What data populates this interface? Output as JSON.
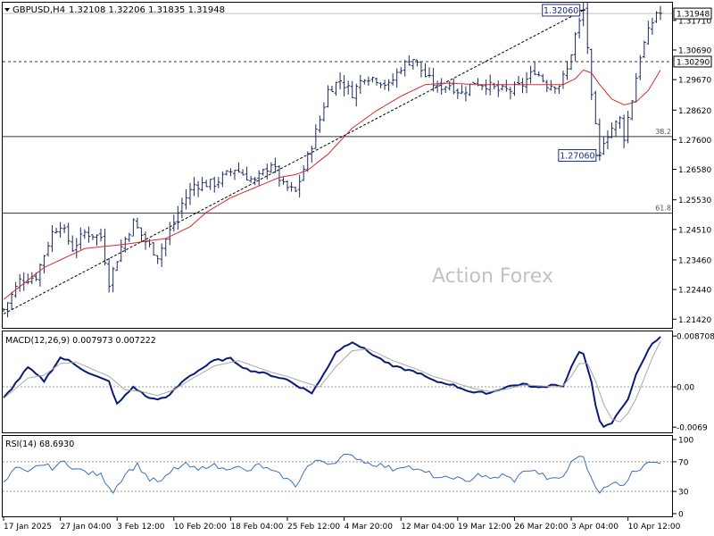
{
  "header": {
    "symbol": "GBPUSD,H4",
    "ohlc": "1.32108 1.32206 1.31835 1.31948"
  },
  "watermark": "Action Forex",
  "colors": {
    "bar": "#1c2a5e",
    "ma": "#d62a2a",
    "macd": "#0b1a78",
    "signal": "#a8a8a8",
    "rsi": "#3b6fc2",
    "grid": "#333333",
    "dotted": "#9a9a9a"
  },
  "chart_data": [
    {
      "type": "ohlc",
      "panel": "price",
      "ylim": [
        1.2112,
        1.3232
      ],
      "ticks": [
        "1.31710",
        "1.30690",
        "1.29670",
        "1.28620",
        "1.27600",
        "1.26580",
        "1.25530",
        "1.24510",
        "1.23460",
        "1.22440",
        "1.21420"
      ],
      "current_price": "1.31948",
      "hline_label": "1.30290",
      "hline_value": 1.3029,
      "fib": [
        {
          "label": "38.2",
          "value": 1.2771
        },
        {
          "label": "61.8",
          "value": 1.2507
        }
      ],
      "annotations": [
        {
          "label": "1.32060",
          "value": 1.3206,
          "bar": 143
        },
        {
          "label": "1.27060",
          "value": 1.2706,
          "bar": 147
        }
      ],
      "trendline": {
        "from_bar": 0,
        "from_value": 1.216,
        "to_bar": 143,
        "to_value": 1.3206
      },
      "anchors": [
        [
          0,
          1.2175
        ],
        [
          4,
          1.2275
        ],
        [
          8,
          1.229
        ],
        [
          12,
          1.244
        ],
        [
          14,
          1.247
        ],
        [
          17,
          1.2385
        ],
        [
          20,
          1.244
        ],
        [
          24,
          1.2425
        ],
        [
          26,
          1.227
        ],
        [
          29,
          1.239
        ],
        [
          32,
          1.2475
        ],
        [
          35,
          1.241
        ],
        [
          38,
          1.236
        ],
        [
          41,
          1.2445
        ],
        [
          44,
          1.254
        ],
        [
          47,
          1.2605
        ],
        [
          52,
          1.261
        ],
        [
          57,
          1.266
        ],
        [
          62,
          1.2615
        ],
        [
          66,
          1.268
        ],
        [
          69,
          1.26
        ],
        [
          72,
          1.258
        ],
        [
          75,
          1.27
        ],
        [
          78,
          1.283
        ],
        [
          80,
          1.293
        ],
        [
          83,
          1.2965
        ],
        [
          86,
          1.292
        ],
        [
          89,
          1.298
        ],
        [
          92,
          1.297
        ],
        [
          95,
          1.2945
        ],
        [
          98,
          1.301
        ],
        [
          101,
          1.304
        ],
        [
          104,
          1.298
        ],
        [
          107,
          1.294
        ],
        [
          110,
          1.295
        ],
        [
          113,
          1.292
        ],
        [
          116,
          1.296
        ],
        [
          119,
          1.295
        ],
        [
          122,
          1.293
        ],
        [
          125,
          1.293
        ],
        [
          128,
          1.295
        ],
        [
          131,
          1.3
        ],
        [
          134,
          1.295
        ],
        [
          137,
          1.295
        ],
        [
          139,
          1.3
        ],
        [
          141,
          1.312
        ],
        [
          143,
          1.3206
        ],
        [
          144,
          1.308
        ],
        [
          145,
          1.29
        ],
        [
          146,
          1.28
        ],
        [
          147,
          1.2706
        ],
        [
          148,
          1.276
        ],
        [
          150,
          1.28
        ],
        [
          152,
          1.283
        ],
        [
          153,
          1.277
        ],
        [
          155,
          1.29
        ],
        [
          157,
          1.305
        ],
        [
          159,
          1.313
        ],
        [
          161,
          1.32
        ],
        [
          162,
          1.3195
        ]
      ],
      "ma_anchors": [
        [
          0,
          1.221
        ],
        [
          10,
          1.232
        ],
        [
          20,
          1.2385
        ],
        [
          30,
          1.24
        ],
        [
          40,
          1.242
        ],
        [
          46,
          1.246
        ],
        [
          50,
          1.251
        ],
        [
          56,
          1.256
        ],
        [
          62,
          1.2595
        ],
        [
          68,
          1.263
        ],
        [
          72,
          1.264
        ],
        [
          75,
          1.2655
        ],
        [
          80,
          1.271
        ],
        [
          86,
          1.28
        ],
        [
          92,
          1.286
        ],
        [
          98,
          1.291
        ],
        [
          104,
          1.295
        ],
        [
          110,
          1.2955
        ],
        [
          116,
          1.295
        ],
        [
          122,
          1.295
        ],
        [
          128,
          1.295
        ],
        [
          134,
          1.295
        ],
        [
          138,
          1.295
        ],
        [
          141,
          1.297
        ],
        [
          143,
          1.3
        ],
        [
          145,
          1.299
        ],
        [
          147,
          1.295
        ],
        [
          150,
          1.29
        ],
        [
          153,
          1.288
        ],
        [
          156,
          1.289
        ],
        [
          159,
          1.293
        ],
        [
          162,
          1.3
        ]
      ]
    },
    {
      "type": "line",
      "panel": "macd",
      "title": "MACD(12,26,9) 0.007973 0.007222",
      "ylim": [
        -0.0078,
        0.0095
      ],
      "ticks": [
        {
          "label": "0.008708",
          "value": 0.008708
        },
        {
          "label": "0.00",
          "value": 0.0
        },
        {
          "label": "-0.0069",
          "value": -0.0069
        }
      ],
      "series": [
        {
          "role": "macd",
          "anchors": [
            [
              0,
              -0.002
            ],
            [
              6,
              0.0033
            ],
            [
              10,
              0.001
            ],
            [
              14,
              0.005
            ],
            [
              16,
              0.0045
            ],
            [
              22,
              0.002
            ],
            [
              26,
              0.0009
            ],
            [
              28,
              -0.003
            ],
            [
              32,
              0.0
            ],
            [
              36,
              -0.002
            ],
            [
              40,
              -0.002
            ],
            [
              45,
              0.0015
            ],
            [
              52,
              0.0045
            ],
            [
              56,
              0.0048
            ],
            [
              60,
              0.003
            ],
            [
              66,
              0.002
            ],
            [
              70,
              0.0012
            ],
            [
              73,
              0.0
            ],
            [
              76,
              -0.001
            ],
            [
              78,
              0.001
            ],
            [
              82,
              0.006
            ],
            [
              86,
              0.0078
            ],
            [
              90,
              0.006
            ],
            [
              96,
              0.0035
            ],
            [
              102,
              0.0025
            ],
            [
              106,
              0.001
            ],
            [
              110,
              0.0005
            ],
            [
              116,
              -0.001
            ],
            [
              120,
              -0.001
            ],
            [
              124,
              0.0
            ],
            [
              128,
              0.0005
            ],
            [
              132,
              -0.0002
            ],
            [
              136,
              0.0005
            ],
            [
              138,
              0.0
            ],
            [
              139,
              0.0018
            ],
            [
              141,
              0.0048
            ],
            [
              142,
              0.0058
            ],
            [
              143,
              0.0055
            ],
            [
              145,
              0.001
            ],
            [
              146,
              -0.003
            ],
            [
              147,
              -0.006
            ],
            [
              148,
              -0.007
            ],
            [
              150,
              -0.0062
            ],
            [
              152,
              -0.004
            ],
            [
              154,
              -0.002
            ],
            [
              156,
              0.002
            ],
            [
              158,
              0.005
            ],
            [
              160,
              0.0075
            ],
            [
              162,
              0.0087
            ]
          ]
        },
        {
          "role": "signal",
          "anchors": [
            [
              0,
              -0.002
            ],
            [
              6,
              0.0015
            ],
            [
              10,
              0.002
            ],
            [
              14,
              0.004
            ],
            [
              18,
              0.0042
            ],
            [
              22,
              0.003
            ],
            [
              26,
              0.0018
            ],
            [
              30,
              -0.0005
            ],
            [
              34,
              -0.0008
            ],
            [
              38,
              -0.0015
            ],
            [
              42,
              -0.0005
            ],
            [
              46,
              0.0012
            ],
            [
              52,
              0.0036
            ],
            [
              58,
              0.0045
            ],
            [
              62,
              0.0035
            ],
            [
              66,
              0.0025
            ],
            [
              70,
              0.0018
            ],
            [
              74,
              0.0008
            ],
            [
              78,
              0.0
            ],
            [
              82,
              0.0035
            ],
            [
              86,
              0.0062
            ],
            [
              90,
              0.0065
            ],
            [
              96,
              0.0045
            ],
            [
              102,
              0.003
            ],
            [
              106,
              0.0018
            ],
            [
              110,
              0.001
            ],
            [
              116,
              -0.0003
            ],
            [
              120,
              -0.0008
            ],
            [
              124,
              -0.0004
            ],
            [
              128,
              0.0003
            ],
            [
              132,
              0.0002
            ],
            [
              136,
              0.0
            ],
            [
              138,
              0.0002
            ],
            [
              140,
              0.0018
            ],
            [
              142,
              0.004
            ],
            [
              144,
              0.004
            ],
            [
              146,
              0.001
            ],
            [
              148,
              -0.003
            ],
            [
              150,
              -0.0055
            ],
            [
              152,
              -0.006
            ],
            [
              154,
              -0.0045
            ],
            [
              156,
              -0.002
            ],
            [
              158,
              0.0015
            ],
            [
              160,
              0.005
            ],
            [
              162,
              0.0078
            ]
          ]
        }
      ]
    },
    {
      "type": "line",
      "panel": "rsi",
      "title": "RSI(14) 68.6930",
      "ylim": [
        0,
        100
      ],
      "ticks": [
        {
          "label": "100",
          "value": 100
        },
        {
          "label": "70",
          "value": 70
        },
        {
          "label": "30",
          "value": 30
        },
        {
          "label": "0",
          "value": 0
        }
      ],
      "levels": [
        70,
        30
      ],
      "series": [
        {
          "role": "rsi",
          "anchors": [
            [
              0,
              40
            ],
            [
              3,
              62
            ],
            [
              6,
              54
            ],
            [
              9,
              67
            ],
            [
              12,
              62
            ],
            [
              15,
              70
            ],
            [
              18,
              60
            ],
            [
              21,
              55
            ],
            [
              24,
              52
            ],
            [
              27,
              30
            ],
            [
              30,
              54
            ],
            [
              33,
              66
            ],
            [
              36,
              46
            ],
            [
              39,
              43
            ],
            [
              42,
              60
            ],
            [
              45,
              66
            ],
            [
              48,
              58
            ],
            [
              51,
              67
            ],
            [
              54,
              60
            ],
            [
              57,
              65
            ],
            [
              60,
              56
            ],
            [
              63,
              66
            ],
            [
              66,
              57
            ],
            [
              69,
              50
            ],
            [
              72,
              38
            ],
            [
              75,
              64
            ],
            [
              78,
              72
            ],
            [
              81,
              68
            ],
            [
              84,
              78
            ],
            [
              87,
              76
            ],
            [
              90,
              68
            ],
            [
              93,
              66
            ],
            [
              96,
              60
            ],
            [
              99,
              66
            ],
            [
              102,
              58
            ],
            [
              105,
              54
            ],
            [
              108,
              46
            ],
            [
              111,
              50
            ],
            [
              114,
              42
            ],
            [
              117,
              54
            ],
            [
              120,
              46
            ],
            [
              123,
              52
            ],
            [
              126,
              45
            ],
            [
              129,
              60
            ],
            [
              132,
              55
            ],
            [
              135,
              45
            ],
            [
              138,
              50
            ],
            [
              140,
              68
            ],
            [
              142,
              80
            ],
            [
              143,
              74
            ],
            [
              145,
              48
            ],
            [
              147,
              30
            ],
            [
              149,
              36
            ],
            [
              151,
              42
            ],
            [
              153,
              40
            ],
            [
              155,
              55
            ],
            [
              157,
              62
            ],
            [
              159,
              72
            ],
            [
              161,
              66
            ],
            [
              162,
              69
            ]
          ]
        }
      ]
    }
  ],
  "x_axis": {
    "labels": [
      {
        "label": "17 Jan 2025",
        "bar": 0
      },
      {
        "label": "27 Jan 04:00",
        "bar": 14
      },
      {
        "label": "3 Feb 12:00",
        "bar": 28
      },
      {
        "label": "10 Feb 20:00",
        "bar": 42
      },
      {
        "label": "18 Feb 04:00",
        "bar": 56
      },
      {
        "label": "25 Feb 12:00",
        "bar": 70
      },
      {
        "label": "4 Mar 20:00",
        "bar": 84
      },
      {
        "label": "12 Mar 04:00",
        "bar": 98
      },
      {
        "label": "19 Mar 12:00",
        "bar": 112
      },
      {
        "label": "26 Mar 20:00",
        "bar": 126
      },
      {
        "label": "3 Apr 04:00",
        "bar": 140
      },
      {
        "label": "10 Apr 12:00",
        "bar": 154
      }
    ]
  }
}
